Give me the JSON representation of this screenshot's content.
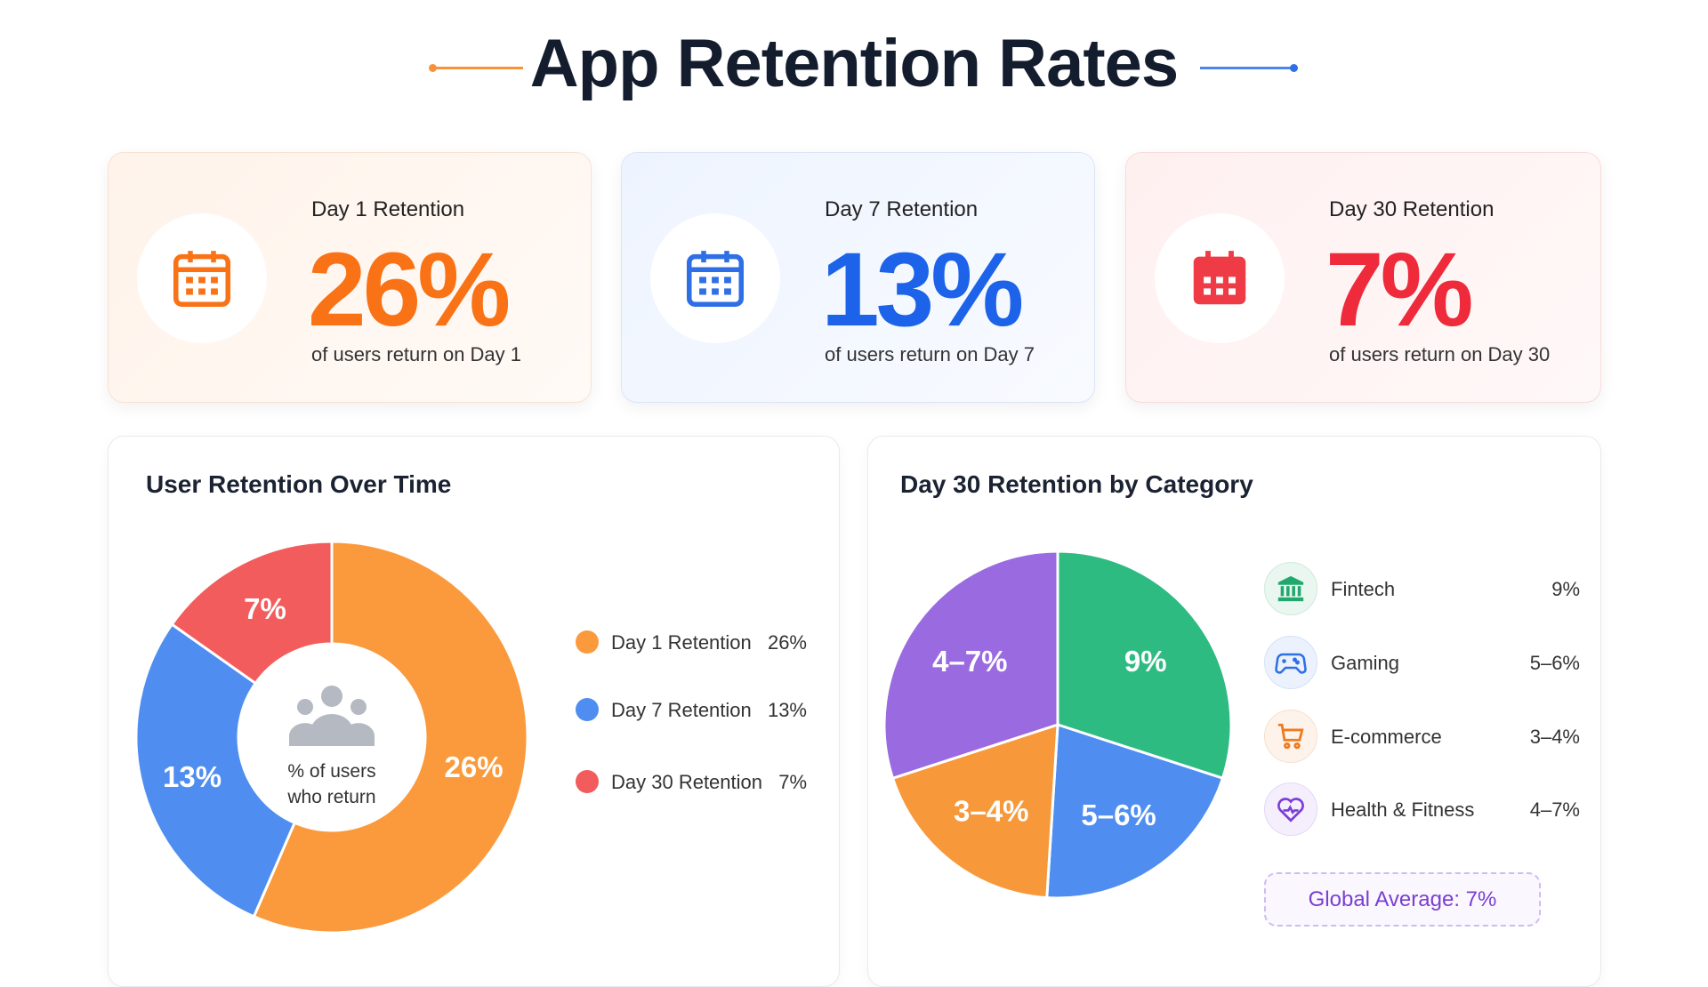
{
  "title": "App Retention Rates",
  "colors": {
    "orange": "#F97316",
    "blue": "#1D63EA",
    "red": "#EE2A3B",
    "donut_orange": "#FB9A3C",
    "donut_blue": "#4F8EF0",
    "donut_red": "#F25C5C",
    "green": "#2EBB82",
    "purple": "#9A6BE0",
    "pie_orange": "#F7993A"
  },
  "cards": [
    {
      "label": "Day 1 Retention",
      "value": "26%",
      "sub": "of users return on Day 1",
      "icon": "calendar-icon"
    },
    {
      "label": "Day 7 Retention",
      "value": "13%",
      "sub": "of users return on Day 7",
      "icon": "calendar-icon"
    },
    {
      "label": "Day 30 Retention",
      "value": "7%",
      "sub": "of users return on Day 30",
      "icon": "calendar-icon"
    }
  ],
  "chart_data": [
    {
      "type": "pie",
      "variant": "donut",
      "title": "User Retention Over Time",
      "center_text": [
        "% of users",
        "who return"
      ],
      "center_icon": "users-icon",
      "legend_position": "right",
      "categories": [
        "Day 1 Retention",
        "Day 7 Retention",
        "Day 30 Retention"
      ],
      "values": [
        26,
        13,
        7
      ],
      "labels": [
        "26%",
        "13%",
        "7%"
      ],
      "colors": [
        "#FB9A3C",
        "#4F8EF0",
        "#F25C5C"
      ]
    },
    {
      "type": "pie",
      "title": "Day 30 Retention by Category",
      "legend_position": "right",
      "categories": [
        "Fintech",
        "Gaming",
        "E-commerce",
        "Health & Fitness"
      ],
      "labels": [
        "9%",
        "5–6%",
        "3–4%",
        "4–7%"
      ],
      "values": [
        30,
        21,
        19,
        30
      ],
      "colors": [
        "#2EBB82",
        "#4F8EF0",
        "#F7993A",
        "#9A6BE0"
      ],
      "icons": [
        "bank-icon",
        "gamepad-icon",
        "cart-icon",
        "heart-pulse-icon"
      ],
      "global_average": "Global Average: 7%"
    }
  ]
}
